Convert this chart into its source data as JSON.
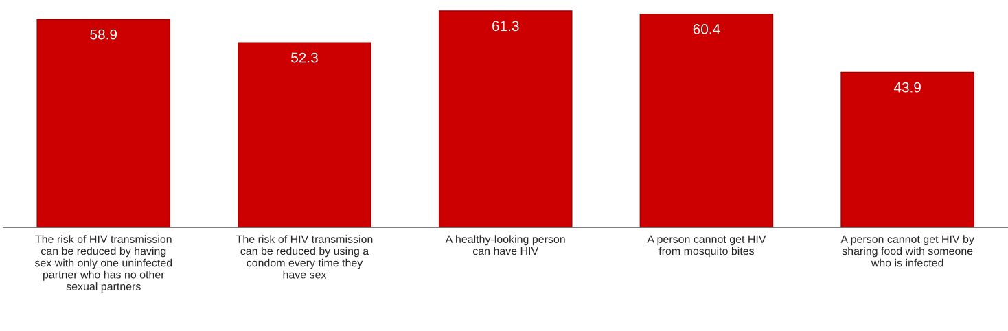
{
  "chart_data": {
    "type": "bar",
    "categories": [
      "The risk of HIV transmission\ncan be reduced by having\nsex with only one uninfected\npartner who has no other\nsexual partners",
      "The risk of HIV transmission\ncan be reduced by using a\ncondom every time they\nhave sex",
      "A healthy-looking person\ncan have HIV",
      "A person cannot get HIV\nfrom mosquito bites",
      "A person cannot get HIV by\nsharing food with someone\nwho is infected"
    ],
    "values": [
      58.9,
      52.3,
      61.3,
      60.4,
      43.9
    ],
    "color": "#cc0000",
    "data_labels": true,
    "grid": false,
    "legend": false
  }
}
